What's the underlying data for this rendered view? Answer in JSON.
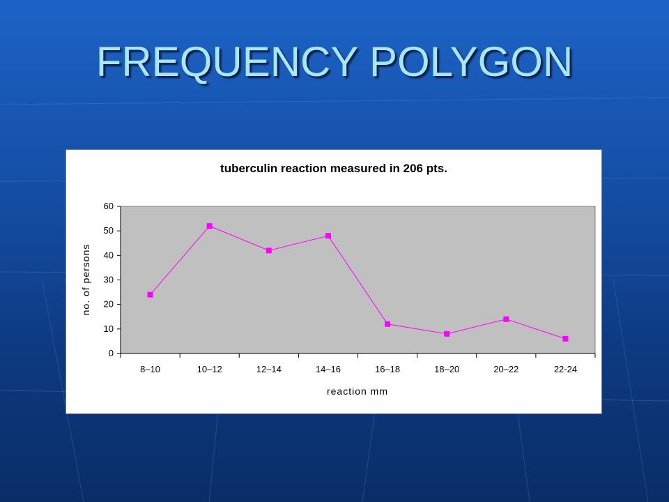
{
  "slide": {
    "title": "FREQUENCY POLYGON",
    "background_color": "#1550a8",
    "title_color": "#a9e6ff"
  },
  "chart_data": {
    "type": "line",
    "title": "tuberculin reaction measured in 206 pts.",
    "xlabel": "reaction mm",
    "ylabel": "no. of persons",
    "categories": [
      "8–10",
      "10–12",
      "12–14",
      "14–16",
      "16–18",
      "18–20",
      "20–22",
      "22-24"
    ],
    "series": [
      {
        "values": [
          24,
          52,
          42,
          48,
          12,
          8,
          14,
          6
        ],
        "color": "#ff00ff"
      }
    ],
    "ylim": [
      0,
      60
    ],
    "yticks": [
      0,
      10,
      20,
      30,
      40,
      50,
      60
    ],
    "grid": false,
    "plot_background": "#c0c0c0",
    "legend": "none"
  }
}
